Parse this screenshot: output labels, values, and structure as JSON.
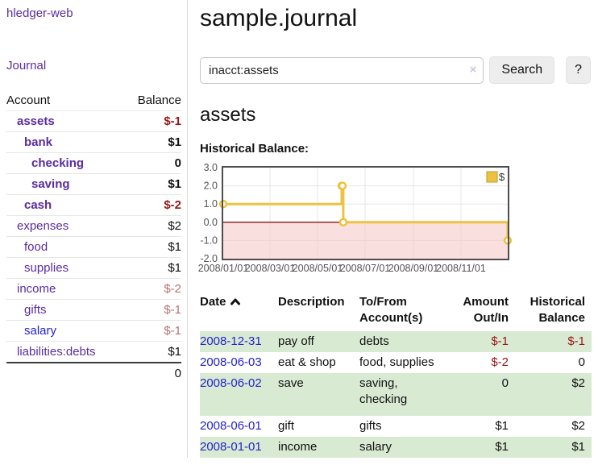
{
  "app": {
    "title": "hledger-web"
  },
  "sidebar": {
    "journal_link": "Journal",
    "table": {
      "headers": [
        "Account",
        "Balance"
      ],
      "rows": [
        {
          "account": "assets",
          "balance": "$-1",
          "indent": 1,
          "bold": true,
          "neg": "strong"
        },
        {
          "account": "bank",
          "balance": "$1",
          "indent": 2,
          "bold": true
        },
        {
          "account": "checking",
          "balance": "0",
          "indent": 3,
          "bold": true
        },
        {
          "account": "saving",
          "balance": "$1",
          "indent": 3,
          "bold": true
        },
        {
          "account": "cash",
          "balance": "$-2",
          "indent": 2,
          "bold": true,
          "neg": "strong"
        },
        {
          "account": "expenses",
          "balance": "$2",
          "indent": 1
        },
        {
          "account": "food",
          "balance": "$1",
          "indent": 2
        },
        {
          "account": "supplies",
          "balance": "$1",
          "indent": 2
        },
        {
          "account": "income",
          "balance": "$-2",
          "indent": 1,
          "neg": "soft"
        },
        {
          "account": "gifts",
          "balance": "$-1",
          "indent": 2,
          "neg": "soft"
        },
        {
          "account": "salary",
          "balance": "$-1",
          "indent": 2,
          "neg": "soft",
          "link": "blue"
        },
        {
          "account": "liabilities:debts",
          "balance": "$1",
          "indent": 1
        }
      ],
      "total": "0"
    }
  },
  "main": {
    "title": "sample.journal",
    "search": {
      "value": "inacct:assets",
      "clear_icon": "×",
      "search_label": "Search",
      "help_label": "?"
    },
    "account_heading": "assets",
    "chart_label": "Historical Balance:"
  },
  "chart_data": {
    "type": "line",
    "step": true,
    "title": "Historical Balance",
    "series": [
      {
        "name": "$",
        "points": [
          {
            "x": "2008-01-01",
            "y": 1
          },
          {
            "x": "2008-06-01",
            "y": 2
          },
          {
            "x": "2008-06-02",
            "y": 2
          },
          {
            "x": "2008-06-03",
            "y": 0
          },
          {
            "x": "2008-12-31",
            "y": -1
          }
        ]
      }
    ],
    "xlim": [
      "2008-01-01",
      "2008-12-31"
    ],
    "ylim": [
      -2,
      3
    ],
    "y_ticks": [
      3,
      2,
      1,
      0,
      -1,
      -2
    ],
    "y_tick_labels": [
      "3.0",
      "2.0",
      "1.0",
      "0.0",
      "-1.0",
      "-2.0"
    ],
    "x_ticks": [
      "2008-01-01",
      "2008-03-01",
      "2008-05-01",
      "2008-07-01",
      "2008-09-01",
      "2008-11-01"
    ],
    "x_tick_labels": [
      "2008/01/01",
      "2008/03/01",
      "2008/05/01",
      "2008/07/01",
      "2008/09/01",
      "2008/11/01"
    ],
    "grid": true,
    "legend_position": "top-right",
    "colors": {
      "line": "#edc240",
      "marker_fill": "#ffffff",
      "negative_region": "#f6c9c9",
      "zero_line": "#8b1616",
      "grid": "#e6e6e6",
      "border": "#4d4d4d",
      "tick_text": "#545454",
      "legend_swatch_border": "#bd9c2f"
    }
  },
  "register": {
    "headers": [
      {
        "label": "Date",
        "sorted": "ascending"
      },
      {
        "label": "Description"
      },
      {
        "label": "To/From Account(s)"
      },
      {
        "label": "Amount Out/In",
        "align": "right"
      },
      {
        "label": "Historical Balance",
        "align": "right"
      }
    ],
    "rows": [
      {
        "date": "2008-12-31",
        "description": "pay off",
        "accounts": "debts",
        "amount": "$-1",
        "amount_neg": true,
        "balance": "$-1",
        "balance_neg": true
      },
      {
        "date": "2008-06-03",
        "description": "eat & shop",
        "accounts": "food, supplies",
        "amount": "$-2",
        "amount_neg": true,
        "balance": "0"
      },
      {
        "date": "2008-06-02",
        "description": "save",
        "accounts": "saving, checking",
        "amount": "0",
        "balance": "$2"
      },
      {
        "date": "2008-06-01",
        "description": "gift",
        "accounts": "gifts",
        "amount": "$1",
        "balance": "$2"
      },
      {
        "date": "2008-01-01",
        "description": "income",
        "accounts": "salary",
        "amount": "$1",
        "balance": "$1"
      }
    ]
  }
}
